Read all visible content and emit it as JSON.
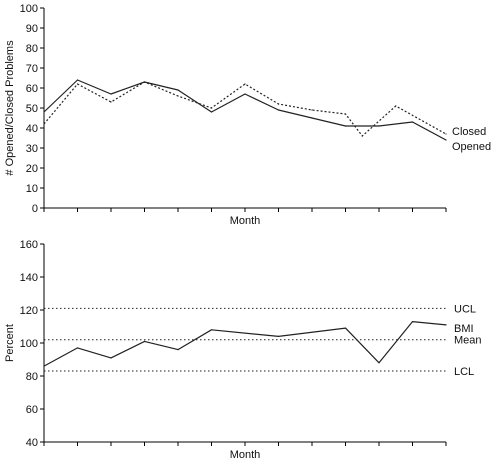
{
  "chart_data": [
    {
      "type": "line",
      "title": "",
      "xlabel": "Month",
      "ylabel": "# Opened/Closed Problems",
      "ylim": [
        0,
        100
      ],
      "yticks": [
        0,
        10,
        20,
        30,
        40,
        50,
        60,
        70,
        80,
        90,
        100
      ],
      "x": [
        1,
        2,
        3,
        4,
        5,
        6,
        7,
        8,
        9,
        10,
        11,
        12,
        13
      ],
      "grid": false,
      "series": [
        {
          "name": "Opened",
          "style": "solid",
          "color": "#222222",
          "values": [
            48,
            64,
            57,
            63,
            59,
            48,
            57,
            49,
            45,
            41,
            41,
            43,
            34
          ]
        },
        {
          "name": "Closed",
          "style": "dotted",
          "color": "#222222",
          "points": [
            [
              1,
              42
            ],
            [
              2,
              62
            ],
            [
              3,
              53
            ],
            [
              4,
              63
            ],
            [
              5,
              56
            ],
            [
              6,
              50
            ],
            [
              7,
              62
            ],
            [
              8,
              52
            ],
            [
              9,
              49
            ],
            [
              10,
              47
            ],
            [
              10.5,
              36
            ],
            [
              11.5,
              51
            ],
            [
              13,
              37
            ]
          ]
        }
      ]
    },
    {
      "type": "line",
      "title": "",
      "xlabel": "Month",
      "ylabel": "Percent",
      "ylim": [
        40,
        160
      ],
      "yticks": [
        40,
        60,
        80,
        100,
        120,
        140,
        160
      ],
      "x": [
        1,
        2,
        3,
        4,
        5,
        6,
        7,
        8,
        9,
        10,
        11,
        12,
        13
      ],
      "grid": false,
      "series": [
        {
          "name": "BMI",
          "style": "solid",
          "color": "#222222",
          "points": [
            [
              1,
              86
            ],
            [
              2,
              97
            ],
            [
              3,
              91
            ],
            [
              4,
              101
            ],
            [
              5,
              96
            ],
            [
              6,
              108
            ],
            [
              8,
              104
            ],
            [
              10,
              109
            ],
            [
              11,
              88
            ],
            [
              12,
              113
            ],
            [
              13,
              111
            ]
          ]
        }
      ],
      "reference_lines": [
        {
          "name": "UCL",
          "value": 121
        },
        {
          "name": "Mean",
          "value": 102
        },
        {
          "name": "LCL",
          "value": 83
        }
      ]
    }
  ]
}
